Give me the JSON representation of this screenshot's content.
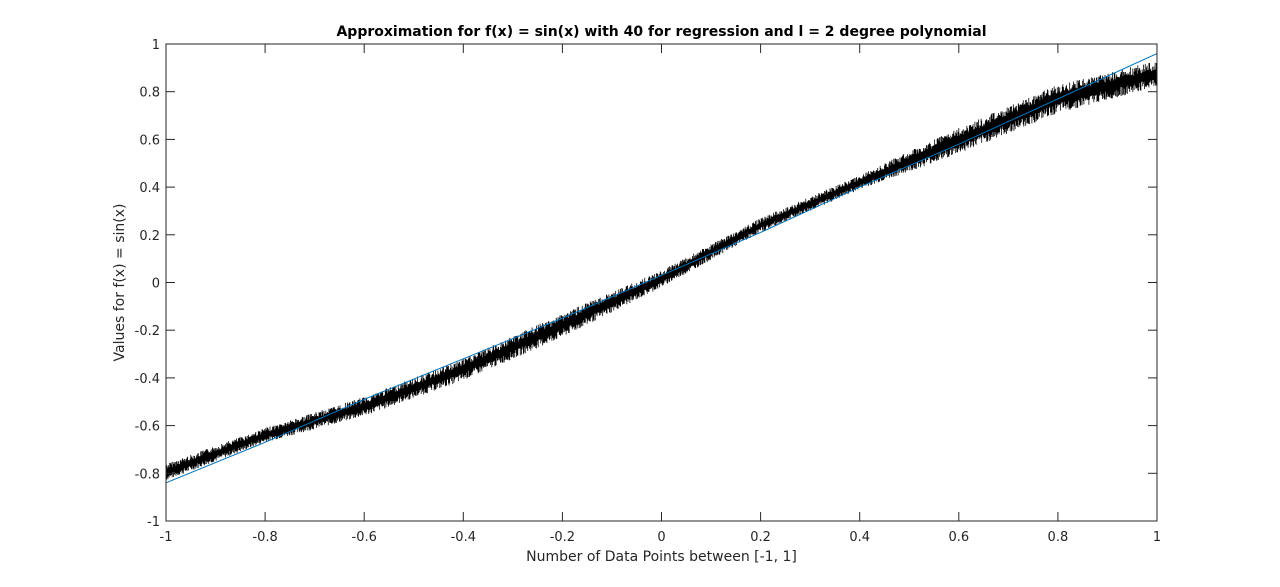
{
  "chart_data": {
    "type": "line",
    "title": "Approximation for f(x) = sin(x) with 40 for regression and l = 2 degree polynomial",
    "xlabel": "Number of Data Points between [-1, 1]",
    "ylabel": "Values for f(x) = sin(x)",
    "xlim": [
      -1,
      1
    ],
    "ylim": [
      -1,
      1
    ],
    "xticks": [
      -1,
      -0.8,
      -0.6,
      -0.4,
      -0.2,
      0,
      0.2,
      0.4,
      0.6,
      0.8,
      1
    ],
    "yticks": [
      -1,
      -0.8,
      -0.6,
      -0.4,
      -0.2,
      0,
      0.2,
      0.4,
      0.6,
      0.8,
      1
    ],
    "xtick_labels": [
      "-1",
      "-0.8",
      "-0.6",
      "-0.4",
      "-0.2",
      "0",
      "0.2",
      "0.4",
      "0.6",
      "0.8",
      "1"
    ],
    "ytick_labels": [
      "-1",
      "-0.8",
      "-0.6",
      "-0.4",
      "-0.2",
      "0",
      "0.2",
      "0.4",
      "0.6",
      "0.8",
      "1"
    ],
    "grid": false,
    "legend": "none",
    "series": [
      {
        "color": "#000000",
        "style": "noisy band",
        "x": [
          -1,
          -0.8,
          -0.6,
          -0.4,
          -0.2,
          0,
          0.2,
          0.4,
          0.6,
          0.8,
          1
        ],
        "y_low": [
          -0.83,
          -0.67,
          -0.56,
          -0.41,
          -0.23,
          -0.02,
          0.21,
          0.39,
          0.54,
          0.71,
          0.82
        ],
        "y_high": [
          -0.76,
          -0.61,
          -0.48,
          -0.32,
          -0.13,
          0.05,
          0.27,
          0.45,
          0.65,
          0.83,
          0.93
        ]
      },
      {
        "color": "#0072BD",
        "style": "line",
        "x": [
          -1,
          -0.8,
          -0.6,
          -0.4,
          -0.2,
          0,
          0.2,
          0.4,
          0.6,
          0.8,
          1
        ],
        "y": [
          -0.84,
          -0.67,
          -0.49,
          -0.32,
          -0.15,
          0.03,
          0.21,
          0.4,
          0.58,
          0.77,
          0.96
        ]
      }
    ]
  }
}
